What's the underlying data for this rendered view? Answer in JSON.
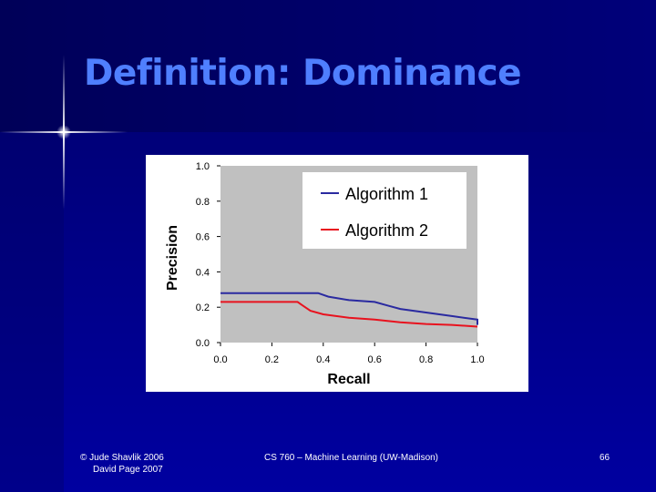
{
  "slide": {
    "title": "Definition: Dominance",
    "footer_left_line1": "© Jude Shavlik 2006",
    "footer_left_line2": "David Page 2007",
    "footer_center": "CS 760 – Machine Learning (UW-Madison)",
    "page_number": "66"
  },
  "colors": {
    "title": "#4f7fff",
    "plot_bg": "#c0c0c0",
    "algorithm1": "#2a2aa0",
    "algorithm2": "#e8121e"
  },
  "chart_data": {
    "type": "line",
    "title": "",
    "xlabel": "Recall",
    "ylabel": "Precision",
    "xlim": [
      0.0,
      1.0
    ],
    "ylim": [
      0.0,
      1.0
    ],
    "xticks": [
      "0.0",
      "0.2",
      "0.4",
      "0.6",
      "0.8",
      "1.0"
    ],
    "yticks": [
      "0.0",
      "0.2",
      "0.4",
      "0.6",
      "0.8",
      "1.0"
    ],
    "grid": false,
    "legend_position": "top-right",
    "series": [
      {
        "name": "Algorithm 1",
        "x": [
          0.0,
          0.05,
          0.1,
          0.15,
          0.2,
          0.25,
          0.3,
          0.35,
          0.38,
          0.42,
          0.5,
          0.6,
          0.65,
          0.7,
          0.8,
          0.9,
          1.0,
          1.0
        ],
        "y": [
          0.28,
          0.28,
          0.28,
          0.28,
          0.28,
          0.28,
          0.28,
          0.28,
          0.28,
          0.26,
          0.24,
          0.23,
          0.21,
          0.19,
          0.17,
          0.15,
          0.13,
          0.1
        ]
      },
      {
        "name": "Algorithm 2",
        "x": [
          0.0,
          0.05,
          0.1,
          0.15,
          0.2,
          0.25,
          0.3,
          0.32,
          0.35,
          0.4,
          0.5,
          0.6,
          0.7,
          0.8,
          0.9,
          1.0
        ],
        "y": [
          0.23,
          0.23,
          0.23,
          0.23,
          0.23,
          0.23,
          0.23,
          0.21,
          0.18,
          0.16,
          0.14,
          0.13,
          0.115,
          0.105,
          0.1,
          0.09
        ]
      }
    ]
  }
}
